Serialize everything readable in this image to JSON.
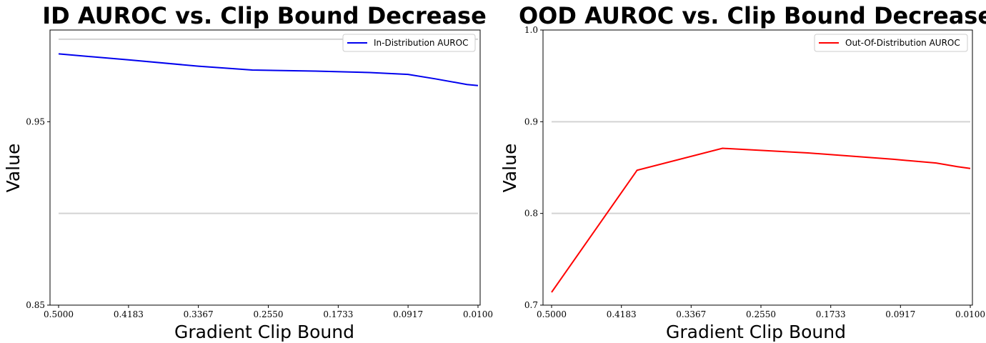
{
  "chart_data": [
    {
      "type": "line",
      "title": "ID AUROC vs. Clip Bound Decrease",
      "xlabel": "Gradient Clip Bound",
      "ylabel": "Value",
      "x_ticks": [
        "0.5000",
        "0.4183",
        "0.3367",
        "0.2550",
        "0.1733",
        "0.0917",
        "0.0100"
      ],
      "y_ticks": [
        "0.85",
        "0.95"
      ],
      "xlim": [
        0.5,
        0.01
      ],
      "ylim": [
        0.85,
        1.0
      ],
      "grid_y": [
        0.9,
        0.995
      ],
      "legend_position": "top-right",
      "series": [
        {
          "name": "In-Distribution AUROC",
          "color": "#0000ee",
          "x": [
            0.5,
            0.4183,
            0.3367,
            0.2736,
            0.2,
            0.1367,
            0.0917,
            0.06,
            0.023,
            0.01
          ],
          "y": [
            0.987,
            0.9837,
            0.9803,
            0.9782,
            0.9776,
            0.9768,
            0.9758,
            0.9734,
            0.9703,
            0.9697
          ]
        }
      ]
    },
    {
      "type": "line",
      "title": "OOD AUROC vs. Clip Bound Decrease",
      "xlabel": "Gradient Clip Bound",
      "ylabel": "Value",
      "x_ticks": [
        "0.5000",
        "0.4183",
        "0.3367",
        "0.2550",
        "0.1733",
        "0.0917",
        "0.0100"
      ],
      "y_ticks": [
        "0.7",
        "0.8",
        "0.9",
        "1.0"
      ],
      "xlim": [
        0.5,
        0.01
      ],
      "ylim": [
        0.7,
        1.0
      ],
      "grid_y": [
        0.8,
        0.9
      ],
      "legend_position": "top-right",
      "series": [
        {
          "name": "Out-Of-Distribution AUROC",
          "color": "#ff0000",
          "x": [
            0.5,
            0.4,
            0.3,
            0.2,
            0.1,
            0.05,
            0.025,
            0.01
          ],
          "y": [
            0.714,
            0.847,
            0.871,
            0.866,
            0.859,
            0.855,
            0.851,
            0.849
          ]
        }
      ]
    }
  ]
}
